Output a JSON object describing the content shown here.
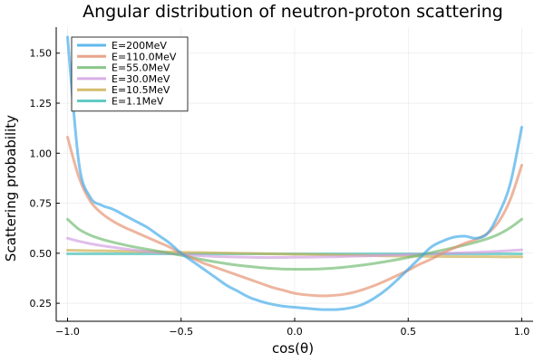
{
  "chart_data": {
    "type": "line",
    "title": "Angular distribution of neutron-proton scattering",
    "xlabel": "cos(θ)",
    "ylabel": "Scattering probability",
    "xlim": [
      -1.05,
      1.05
    ],
    "ylim": [
      0.16,
      1.63
    ],
    "xticks": [
      -1.0,
      -0.5,
      0.0,
      0.5,
      1.0
    ],
    "xtick_labels": [
      "−1.0",
      "−0.5",
      "0.0",
      "0.5",
      "1.0"
    ],
    "yticks": [
      0.25,
      0.5,
      0.75,
      1.0,
      1.25,
      1.5
    ],
    "ytick_labels": [
      "0.25",
      "0.50",
      "0.75",
      "1.00",
      "1.25",
      "1.50"
    ],
    "grid": true,
    "legend_position": "top-left",
    "x": [
      -1.0,
      -0.95,
      -0.9,
      -0.85,
      -0.8,
      -0.75,
      -0.7,
      -0.65,
      -0.6,
      -0.55,
      -0.5,
      -0.45,
      -0.4,
      -0.35,
      -0.3,
      -0.25,
      -0.2,
      -0.15,
      -0.1,
      -0.05,
      0.0,
      0.05,
      0.1,
      0.15,
      0.2,
      0.25,
      0.3,
      0.35,
      0.4,
      0.45,
      0.5,
      0.55,
      0.6,
      0.65,
      0.7,
      0.75,
      0.8,
      0.85,
      0.9,
      0.95,
      1.0
    ],
    "series": [
      {
        "name": "E=200MeV",
        "color": "#3aa8e8",
        "values": [
          1.58,
          0.95,
          0.78,
          0.74,
          0.72,
          0.69,
          0.66,
          0.63,
          0.59,
          0.55,
          0.5,
          0.46,
          0.42,
          0.38,
          0.34,
          0.31,
          0.28,
          0.26,
          0.245,
          0.235,
          0.23,
          0.225,
          0.22,
          0.218,
          0.22,
          0.228,
          0.245,
          0.275,
          0.315,
          0.365,
          0.42,
          0.475,
          0.53,
          0.56,
          0.58,
          0.585,
          0.575,
          0.6,
          0.7,
          0.85,
          1.13
        ]
      },
      {
        "name": "E=110.0MeV",
        "color": "#e38d6b",
        "values": [
          1.08,
          0.88,
          0.76,
          0.7,
          0.66,
          0.63,
          0.605,
          0.58,
          0.555,
          0.53,
          0.5,
          0.475,
          0.45,
          0.43,
          0.41,
          0.39,
          0.37,
          0.35,
          0.33,
          0.315,
          0.3,
          0.292,
          0.288,
          0.288,
          0.292,
          0.302,
          0.318,
          0.338,
          0.362,
          0.388,
          0.415,
          0.445,
          0.47,
          0.5,
          0.525,
          0.55,
          0.57,
          0.6,
          0.66,
          0.77,
          0.94
        ]
      },
      {
        "name": "E=55.0MeV",
        "color": "#6cb86c",
        "values": [
          0.67,
          0.62,
          0.59,
          0.57,
          0.555,
          0.542,
          0.53,
          0.52,
          0.51,
          0.5,
          0.49,
          0.478,
          0.467,
          0.457,
          0.448,
          0.44,
          0.434,
          0.428,
          0.424,
          0.421,
          0.42,
          0.42,
          0.421,
          0.424,
          0.428,
          0.434,
          0.441,
          0.449,
          0.458,
          0.468,
          0.479,
          0.491,
          0.503,
          0.515,
          0.528,
          0.541,
          0.556,
          0.573,
          0.596,
          0.628,
          0.67
        ]
      },
      {
        "name": "E=30.0MeV",
        "color": "#cf9be0",
        "values": [
          0.575,
          0.56,
          0.548,
          0.538,
          0.53,
          0.522,
          0.515,
          0.509,
          0.503,
          0.498,
          0.494,
          0.49,
          0.487,
          0.484,
          0.482,
          0.481,
          0.48,
          0.479,
          0.479,
          0.479,
          0.48,
          0.48,
          0.481,
          0.482,
          0.483,
          0.485,
          0.486,
          0.488,
          0.49,
          0.491,
          0.493,
          0.495,
          0.497,
          0.499,
          0.501,
          0.503,
          0.505,
          0.507,
          0.51,
          0.513,
          0.517
        ]
      },
      {
        "name": "E=10.5MeV",
        "color": "#c9ac4a",
        "values": [
          0.515,
          0.514,
          0.513,
          0.512,
          0.511,
          0.51,
          0.509,
          0.508,
          0.507,
          0.506,
          0.505,
          0.504,
          0.503,
          0.502,
          0.501,
          0.5,
          0.499,
          0.498,
          0.497,
          0.496,
          0.495,
          0.494,
          0.493,
          0.492,
          0.491,
          0.49,
          0.489,
          0.488,
          0.487,
          0.486,
          0.485,
          0.485,
          0.484,
          0.484,
          0.483,
          0.483,
          0.483,
          0.483,
          0.482,
          0.482,
          0.482
        ]
      },
      {
        "name": "E=1.1MeV",
        "color": "#3dbdb5",
        "values": [
          0.497,
          0.497,
          0.497,
          0.497,
          0.497,
          0.497,
          0.497,
          0.497,
          0.497,
          0.497,
          0.497,
          0.497,
          0.497,
          0.497,
          0.497,
          0.497,
          0.497,
          0.497,
          0.497,
          0.497,
          0.497,
          0.497,
          0.497,
          0.497,
          0.497,
          0.497,
          0.497,
          0.497,
          0.497,
          0.497,
          0.497,
          0.497,
          0.497,
          0.497,
          0.497,
          0.497,
          0.497,
          0.497,
          0.497,
          0.497,
          0.497
        ]
      }
    ]
  }
}
